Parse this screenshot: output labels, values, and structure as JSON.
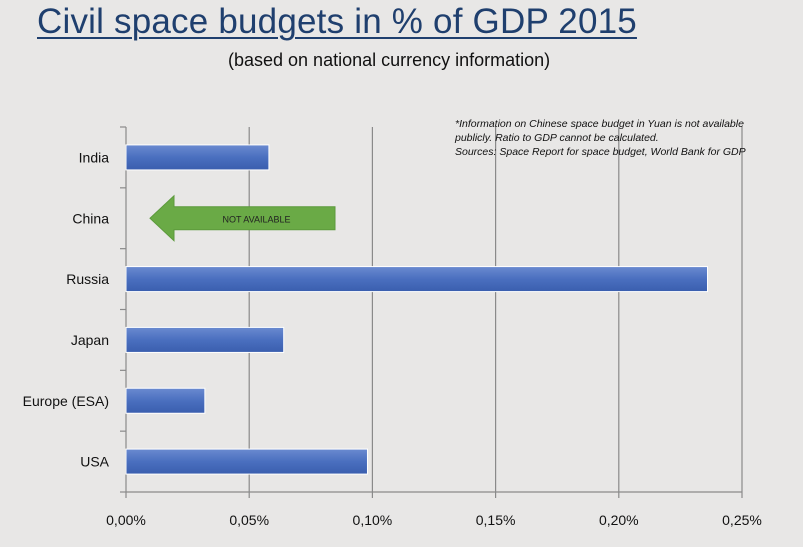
{
  "chart_data": {
    "type": "bar",
    "orientation": "horizontal",
    "title": "Civil space budgets in % of GDP 2015",
    "subtitle": "(based on national currency information)",
    "categories": [
      "India",
      "China",
      "Russia",
      "Japan",
      "Europe (ESA)",
      "USA"
    ],
    "values": [
      0.058,
      null,
      0.236,
      0.064,
      0.032,
      0.098
    ],
    "unit": "% of GDP",
    "xlim": [
      0,
      0.25
    ],
    "xticks": [
      0,
      0.05,
      0.1,
      0.15,
      0.2,
      0.25
    ],
    "xtick_labels": [
      "0,00%",
      "0,05%",
      "0,10%",
      "0,15%",
      "0,20%",
      "0,25%"
    ],
    "xlabel": "",
    "ylabel": "",
    "grid": "vertical",
    "bar_color": "#4a6fbf",
    "annotations": [
      {
        "category": "China",
        "type": "arrow-left",
        "text": "NOT AVAILABLE",
        "color": "#6aaa46"
      }
    ],
    "note_lines": [
      "*Information on Chinese space budget in Yuan is not available",
      "publicly. Ratio to GDP cannot be calculated.",
      "Sources: Space Report for space budget, World Bank for GDP"
    ]
  }
}
